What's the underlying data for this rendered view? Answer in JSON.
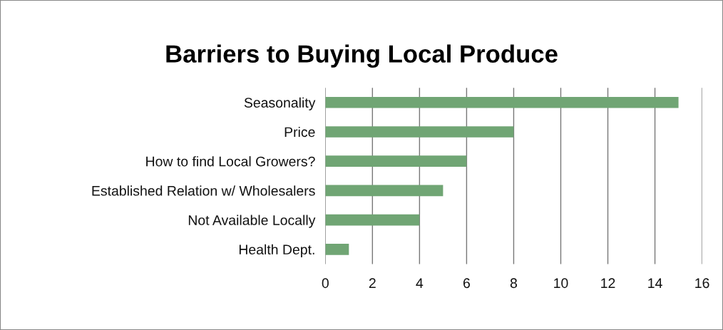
{
  "chart_data": {
    "type": "bar",
    "orientation": "horizontal",
    "title": "Barriers to Buying Local Produce",
    "categories": [
      "Seasonality",
      "Price",
      "How to find Local Growers?",
      "Established Relation w/ Wholesalers",
      "Not Available Locally",
      "Health Dept."
    ],
    "values": [
      15,
      8,
      6,
      5,
      4,
      1
    ],
    "color": "#70a574",
    "xlim": [
      0,
      16
    ],
    "xticks": [
      0,
      2,
      4,
      6,
      8,
      10,
      12,
      14,
      16
    ],
    "grid": "x"
  }
}
